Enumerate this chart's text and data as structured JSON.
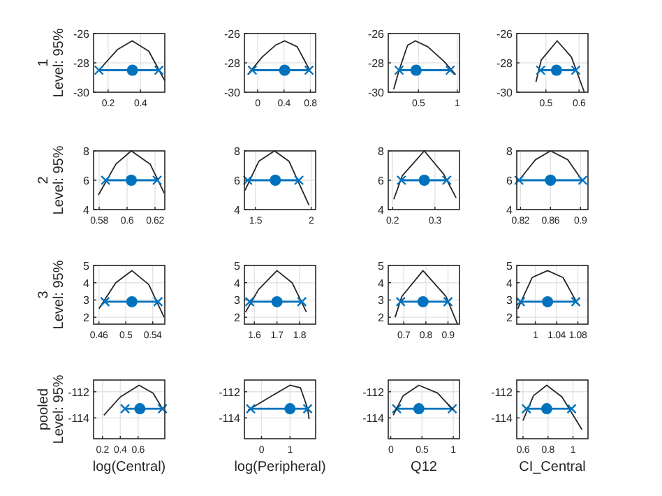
{
  "chart_data": [
    {
      "type": "line",
      "ylabel": "1\nLevel: 95%",
      "xlim": [
        0.11,
        0.55
      ],
      "xticks": [
        0.2,
        0.4
      ],
      "ylim": [
        -30,
        -26
      ],
      "yticks": [
        -30,
        -28,
        -26
      ],
      "grid": true,
      "series": [
        {
          "color": "#262626",
          "marker": "none",
          "x": [
            0.143,
            0.257,
            0.349,
            0.451,
            0.549
          ],
          "values": [
            -28.5,
            -27.1,
            -26.5,
            -27.2,
            -29.2
          ]
        },
        {
          "color": "#0072bd",
          "marker": "cross",
          "x": [
            0.143,
            0.514
          ],
          "values": [
            -28.5,
            -28.5
          ]
        },
        {
          "type": "scatter",
          "color": "#0072bd",
          "marker": "circle",
          "x": [
            0.35
          ],
          "values": [
            -28.5
          ]
        }
      ]
    },
    {
      "type": "line",
      "xlim": [
        -0.2,
        0.88
      ],
      "xticks": [
        0,
        0.4,
        0.8
      ],
      "ylim": [
        -30,
        -26
      ],
      "yticks": [
        -30,
        -28,
        -26
      ],
      "grid": true,
      "series": [
        {
          "color": "#262626",
          "marker": "none",
          "x": [
            -0.15,
            0.07,
            0.27,
            0.41,
            0.6,
            0.79
          ],
          "values": [
            -28.8,
            -27.6,
            -26.8,
            -26.5,
            -26.9,
            -28.5
          ]
        },
        {
          "color": "#0072bd",
          "marker": "cross",
          "x": [
            -0.08,
            0.78
          ],
          "values": [
            -28.5,
            -28.5
          ]
        },
        {
          "type": "scatter",
          "color": "#0072bd",
          "marker": "circle",
          "x": [
            0.41
          ],
          "values": [
            -28.5
          ]
        }
      ]
    },
    {
      "type": "line",
      "xlim": [
        0.11,
        1.03
      ],
      "xticks": [
        0.5,
        1
      ],
      "ylim": [
        -30,
        -26
      ],
      "yticks": [
        -30,
        -28,
        -26
      ],
      "grid": true,
      "series": [
        {
          "color": "#262626",
          "marker": "none",
          "x": [
            0.18,
            0.25,
            0.36,
            0.46,
            0.62,
            0.83,
            0.98
          ],
          "values": [
            -29.8,
            -28.5,
            -26.8,
            -26.5,
            -26.9,
            -27.9,
            -28.8
          ]
        },
        {
          "color": "#0072bd",
          "marker": "cross",
          "x": [
            0.25,
            0.91
          ],
          "values": [
            -28.5,
            -28.5
          ]
        },
        {
          "type": "scatter",
          "color": "#0072bd",
          "marker": "circle",
          "x": [
            0.47
          ],
          "values": [
            -28.5
          ]
        }
      ]
    },
    {
      "type": "line",
      "xlim": [
        0.412,
        0.627
      ],
      "xticks": [
        0.5,
        0.6
      ],
      "ylim": [
        -30,
        -26
      ],
      "yticks": [
        -30,
        -28,
        -26
      ],
      "grid": true,
      "series": [
        {
          "color": "#262626",
          "marker": "none",
          "x": [
            0.47,
            0.486,
            0.534,
            0.577,
            0.616
          ],
          "values": [
            -29.3,
            -27.8,
            -26.5,
            -27.6,
            -30
          ]
        },
        {
          "color": "#0072bd",
          "marker": "cross",
          "x": [
            0.484,
            0.59
          ],
          "values": [
            -28.5,
            -28.5
          ]
        },
        {
          "type": "scatter",
          "color": "#0072bd",
          "marker": "circle",
          "x": [
            0.532
          ],
          "values": [
            -28.5
          ]
        }
      ]
    },
    {
      "type": "line",
      "ylabel": "2\nLevel: 95%",
      "xlim": [
        0.576,
        0.627
      ],
      "xticks": [
        0.58,
        0.6,
        0.62
      ],
      "ylim": [
        4,
        8
      ],
      "yticks": [
        4,
        6,
        8
      ],
      "grid": true,
      "series": [
        {
          "color": "#262626",
          "marker": "none",
          "x": [
            0.5795,
            0.592,
            0.603,
            0.6165,
            0.6267
          ],
          "values": [
            5,
            7.1,
            8,
            7.1,
            5.1
          ]
        },
        {
          "color": "#0072bd",
          "marker": "cross",
          "x": [
            0.5846,
            0.6215
          ],
          "values": [
            6,
            6
          ]
        },
        {
          "type": "scatter",
          "color": "#0072bd",
          "marker": "circle",
          "x": [
            0.603
          ],
          "values": [
            6
          ]
        }
      ]
    },
    {
      "type": "line",
      "xlim": [
        1.4,
        2.04
      ],
      "xticks": [
        1.5,
        2
      ],
      "ylim": [
        4,
        8
      ],
      "yticks": [
        4,
        6,
        8
      ],
      "grid": true,
      "series": [
        {
          "color": "#262626",
          "marker": "none",
          "x": [
            1.405,
            1.53,
            1.67,
            1.8,
            1.98
          ],
          "values": [
            5.3,
            7.3,
            8,
            7.3,
            4.3
          ]
        },
        {
          "color": "#0072bd",
          "marker": "cross",
          "x": [
            1.43,
            1.89
          ],
          "values": [
            6,
            6
          ]
        },
        {
          "type": "scatter",
          "color": "#0072bd",
          "marker": "circle",
          "x": [
            1.678
          ],
          "values": [
            6
          ]
        }
      ]
    },
    {
      "type": "line",
      "xlim": [
        0.19,
        0.358
      ],
      "xticks": [
        0.2,
        0.3
      ],
      "ylim": [
        4,
        8
      ],
      "yticks": [
        4,
        6,
        8
      ],
      "grid": true,
      "series": [
        {
          "color": "#262626",
          "marker": "none",
          "x": [
            0.203,
            0.223,
            0.275,
            0.321,
            0.35
          ],
          "values": [
            4.7,
            6.3,
            8,
            6.4,
            4.8
          ]
        },
        {
          "color": "#0072bd",
          "marker": "cross",
          "x": [
            0.221,
            0.328
          ],
          "values": [
            6,
            6
          ]
        },
        {
          "type": "scatter",
          "color": "#0072bd",
          "marker": "circle",
          "x": [
            0.275
          ],
          "values": [
            6
          ]
        }
      ]
    },
    {
      "type": "line",
      "xlim": [
        0.815,
        0.91
      ],
      "xticks": [
        0.82,
        0.86,
        0.9
      ],
      "ylim": [
        4,
        8
      ],
      "yticks": [
        4,
        6,
        8
      ],
      "grid": true,
      "series": [
        {
          "color": "#262626",
          "marker": "none",
          "x": [
            0.818,
            0.84,
            0.86,
            0.883,
            0.902
          ],
          "values": [
            6,
            7.4,
            8,
            7.4,
            6
          ]
        },
        {
          "color": "#0072bd",
          "marker": "cross",
          "x": [
            0.818,
            0.903
          ],
          "values": [
            6,
            6
          ]
        },
        {
          "type": "scatter",
          "color": "#0072bd",
          "marker": "circle",
          "x": [
            0.86
          ],
          "values": [
            6
          ]
        }
      ]
    },
    {
      "type": "line",
      "ylabel": "3\nLevel: 95%",
      "xlim": [
        0.452,
        0.558
      ],
      "xticks": [
        0.46,
        0.5,
        0.54
      ],
      "ylim": [
        1.6,
        5
      ],
      "yticks": [
        2,
        3,
        4,
        5
      ],
      "grid": true,
      "series": [
        {
          "color": "#262626",
          "marker": "none",
          "x": [
            0.46,
            0.485,
            0.509,
            0.534,
            0.557
          ],
          "values": [
            2.5,
            4,
            4.7,
            3.9,
            2
          ]
        },
        {
          "color": "#0072bd",
          "marker": "cross",
          "x": [
            0.469,
            0.548
          ],
          "values": [
            2.9,
            2.9
          ]
        },
        {
          "type": "scatter",
          "color": "#0072bd",
          "marker": "circle",
          "x": [
            0.509
          ],
          "values": [
            2.9
          ]
        }
      ]
    },
    {
      "type": "line",
      "xlim": [
        1.556,
        1.871
      ],
      "xticks": [
        1.6,
        1.7,
        1.8
      ],
      "ylim": [
        1.6,
        5
      ],
      "yticks": [
        2,
        3,
        4,
        5
      ],
      "grid": true,
      "series": [
        {
          "color": "#262626",
          "marker": "none",
          "x": [
            1.561,
            1.618,
            1.7,
            1.767,
            1.83
          ],
          "values": [
            2.3,
            3.6,
            4.7,
            4,
            2.3
          ]
        },
        {
          "color": "#0072bd",
          "marker": "cross",
          "x": [
            1.579,
            1.81
          ],
          "values": [
            2.9,
            2.9
          ]
        },
        {
          "type": "scatter",
          "color": "#0072bd",
          "marker": "circle",
          "x": [
            1.7
          ],
          "values": [
            2.9
          ]
        }
      ]
    },
    {
      "type": "line",
      "xlim": [
        0.63,
        0.952
      ],
      "xticks": [
        0.7,
        0.8,
        0.9
      ],
      "ylim": [
        1.6,
        5
      ],
      "yticks": [
        2,
        3,
        4,
        5
      ],
      "grid": true,
      "series": [
        {
          "color": "#262626",
          "marker": "none",
          "x": [
            0.661,
            0.691,
            0.787,
            0.891,
            0.943
          ],
          "values": [
            2,
            3.2,
            4.7,
            3.2,
            1.6
          ]
        },
        {
          "color": "#0072bd",
          "marker": "cross",
          "x": [
            0.686,
            0.9
          ],
          "values": [
            2.9,
            2.9
          ]
        },
        {
          "type": "scatter",
          "color": "#0072bd",
          "marker": "circle",
          "x": [
            0.787
          ],
          "values": [
            2.9
          ]
        }
      ]
    },
    {
      "type": "line",
      "xlim": [
        0.965,
        1.099
      ],
      "xticks": [
        1,
        1.04,
        1.08
      ],
      "ylim": [
        1.6,
        5
      ],
      "yticks": [
        2,
        3,
        4,
        5
      ],
      "grid": true,
      "series": [
        {
          "color": "#262626",
          "marker": "none",
          "x": [
            0.967,
            0.994,
            1.023,
            1.052,
            1.079
          ],
          "values": [
            2.5,
            4.3,
            4.7,
            4.3,
            2.8
          ]
        },
        {
          "color": "#0072bd",
          "marker": "cross",
          "x": [
            0.972,
            1.076
          ],
          "values": [
            2.9,
            2.9
          ]
        },
        {
          "type": "scatter",
          "color": "#0072bd",
          "marker": "circle",
          "x": [
            1.023
          ],
          "values": [
            2.9
          ]
        }
      ]
    },
    {
      "type": "line",
      "ylabel": "pooled\nLevel: 95%",
      "xlabel": "log(Central)",
      "xlim": [
        0.1,
        0.9
      ],
      "xticks": [
        0.2,
        0.4,
        0.6
      ],
      "ylim": [
        -115.6,
        -111.1
      ],
      "yticks": [
        -114,
        -112
      ],
      "grid": true,
      "series": [
        {
          "color": "#262626",
          "marker": "none",
          "x": [
            0.216,
            0.4,
            0.611,
            0.768,
            0.874
          ],
          "values": [
            -113.8,
            -112.4,
            -111.5,
            -112.1,
            -113.3
          ]
        },
        {
          "color": "#0072bd",
          "marker": "cross",
          "x": [
            0.453,
            0.874
          ],
          "values": [
            -113.3,
            -113.3
          ]
        },
        {
          "type": "scatter",
          "color": "#0072bd",
          "marker": "circle",
          "x": [
            0.62
          ],
          "values": [
            -113.3
          ]
        }
      ]
    },
    {
      "type": "line",
      "xlabel": "log(Peripheral)",
      "xlim": [
        -0.6,
        1.9
      ],
      "xticks": [
        0,
        1
      ],
      "ylim": [
        -115.6,
        -111.1
      ],
      "yticks": [
        -114,
        -112
      ],
      "grid": true,
      "series": [
        {
          "color": "#262626",
          "marker": "none",
          "x": [
            -0.47,
            0.37,
            1,
            1.37,
            1.62,
            1.67
          ],
          "values": [
            -113.4,
            -112.3,
            -111.5,
            -111.7,
            -113.3,
            -114.1
          ]
        },
        {
          "color": "#0072bd",
          "marker": "cross",
          "x": [
            -0.38,
            1.62
          ],
          "values": [
            -113.3,
            -113.3
          ]
        },
        {
          "type": "scatter",
          "color": "#0072bd",
          "marker": "circle",
          "x": [
            1
          ],
          "values": [
            -113.3
          ]
        }
      ]
    },
    {
      "type": "line",
      "xlabel": "Q12",
      "xlim": [
        -0.04,
        1.1
      ],
      "xticks": [
        0,
        0.5,
        1
      ],
      "ylim": [
        -115.6,
        -111.1
      ],
      "yticks": [
        -114,
        -112
      ],
      "grid": true,
      "series": [
        {
          "color": "#0072bd",
          "marker": "cross",
          "x": [
            0.094,
            0.984
          ],
          "values": [
            -113.3,
            -113.3
          ]
        },
        {
          "type": "scatter",
          "color": "#0072bd",
          "marker": "circle",
          "x": [
            0.45
          ],
          "values": [
            -113.3
          ]
        },
        {
          "color": "#262626",
          "marker": "none",
          "x": [
            0.04,
            0.2,
            0.45,
            0.75,
            1
          ],
          "values": [
            -113.8,
            -112.3,
            -111.5,
            -112.1,
            -113.4
          ]
        }
      ]
    },
    {
      "type": "line",
      "xlabel": "CI_Central",
      "xlim": [
        0.55,
        1.12
      ],
      "xticks": [
        0.6,
        0.8,
        1
      ],
      "ylim": [
        -115.6,
        -111.1
      ],
      "yticks": [
        -114,
        -112
      ],
      "grid": true,
      "series": [
        {
          "color": "#262626",
          "marker": "none",
          "x": [
            0.6,
            0.684,
            0.79,
            0.912,
            1.072
          ],
          "values": [
            -114.2,
            -112.3,
            -111.5,
            -112.4,
            -114.9
          ]
        },
        {
          "color": "#0072bd",
          "marker": "cross",
          "x": [
            0.627,
            0.989
          ],
          "values": [
            -113.3,
            -113.3
          ]
        },
        {
          "type": "scatter",
          "color": "#0072bd",
          "marker": "circle",
          "x": [
            0.79
          ],
          "values": [
            -113.3
          ]
        }
      ]
    }
  ]
}
